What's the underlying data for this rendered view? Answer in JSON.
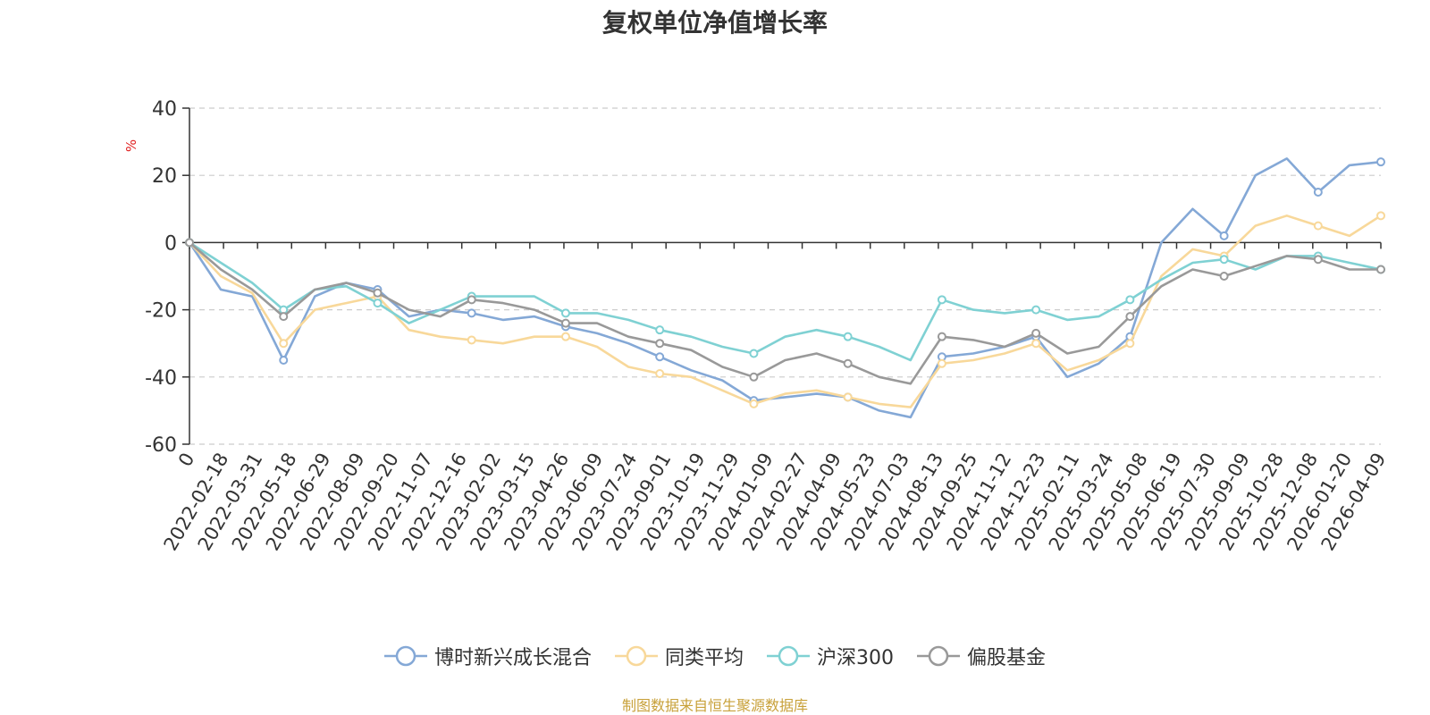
{
  "chart_data": {
    "type": "line",
    "title": "复权单位净值增长率",
    "ylabel": "%",
    "ylim": [
      -60,
      40
    ],
    "yticks": [
      -60,
      -40,
      -20,
      0,
      20,
      40
    ],
    "xticks": [
      "0",
      "2022-02-18",
      "2022-03-31",
      "2022-05-18",
      "2022-06-29",
      "2022-08-09",
      "2022-09-20",
      "2022-11-07",
      "2022-12-16",
      "2023-02-02",
      "2023-03-15",
      "2023-04-26",
      "2023-06-09",
      "2023-07-24",
      "2023-09-01",
      "2023-10-19",
      "2023-11-29",
      "2024-01-09",
      "2024-02-27",
      "2024-04-09",
      "2024-05-23",
      "2024-07-03",
      "2024-08-13",
      "2024-09-25",
      "2024-11-12",
      "2024-12-23",
      "2025-02-11",
      "2025-03-24",
      "2025-05-08",
      "2025-06-19",
      "2025-07-30",
      "2025-09-09",
      "2025-10-28",
      "2025-12-08",
      "2026-01-20",
      "2026-04-09"
    ],
    "grid": true,
    "legend_position": "bottom",
    "series": [
      {
        "name": "博时新兴成长混合",
        "color": "#84a8d6",
        "values": [
          0,
          -14,
          -16,
          -35,
          -16,
          -12,
          -14,
          -22,
          -20,
          -21,
          -23,
          -22,
          -25,
          -27,
          -30,
          -34,
          -38,
          -41,
          -47,
          -46,
          -45,
          -46,
          -50,
          -52,
          -34,
          -33,
          -31,
          -28,
          -40,
          -36,
          -28,
          0,
          10,
          2,
          20,
          25,
          15,
          23,
          24
        ]
      },
      {
        "name": "同类平均",
        "color": "#f8d89a",
        "values": [
          0,
          -10,
          -15,
          -30,
          -20,
          -18,
          -16,
          -26,
          -28,
          -29,
          -30,
          -28,
          -28,
          -31,
          -37,
          -39,
          -40,
          -44,
          -48,
          -45,
          -44,
          -46,
          -48,
          -49,
          -36,
          -35,
          -33,
          -30,
          -38,
          -35,
          -30,
          -10,
          -2,
          -4,
          5,
          8,
          5,
          2,
          8
        ]
      },
      {
        "name": "沪深300",
        "color": "#7fd1d3",
        "values": [
          0,
          -6,
          -12,
          -20,
          -14,
          -13,
          -18,
          -24,
          -20,
          -16,
          -16,
          -16,
          -21,
          -21,
          -23,
          -26,
          -28,
          -31,
          -33,
          -28,
          -26,
          -28,
          -31,
          -35,
          -17,
          -20,
          -21,
          -20,
          -23,
          -22,
          -17,
          -11,
          -6,
          -5,
          -8,
          -4,
          -4,
          -6,
          -8
        ]
      },
      {
        "name": "偏股基金",
        "color": "#999999",
        "values": [
          0,
          -8,
          -14,
          -22,
          -14,
          -12,
          -15,
          -20,
          -22,
          -17,
          -18,
          -20,
          -24,
          -24,
          -28,
          -30,
          -32,
          -37,
          -40,
          -35,
          -33,
          -36,
          -40,
          -42,
          -28,
          -29,
          -31,
          -27,
          -33,
          -31,
          -22,
          -13,
          -8,
          -10,
          -7,
          -4,
          -5,
          -8,
          -8
        ]
      }
    ]
  },
  "source_text": "制图数据来自恒生聚源数据库",
  "source_color": "#c8a13a",
  "axis_color": "#333333",
  "ylabel_color": "#e02020"
}
